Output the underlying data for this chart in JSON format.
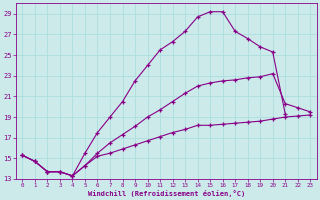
{
  "xlabel": "Windchill (Refroidissement éolien,°C)",
  "background_color": "#cceaea",
  "line_color": "#880088",
  "grid_color": "#aadddd",
  "xlim": [
    -0.5,
    23.5
  ],
  "ylim": [
    13,
    30
  ],
  "xticks": [
    0,
    1,
    2,
    3,
    4,
    5,
    6,
    7,
    8,
    9,
    10,
    11,
    12,
    13,
    14,
    15,
    16,
    17,
    18,
    19,
    20,
    21,
    22,
    23
  ],
  "yticks": [
    13,
    15,
    17,
    19,
    21,
    23,
    25,
    27,
    29
  ],
  "line1_x": [
    0,
    1,
    2,
    3,
    4,
    5,
    6,
    7,
    8,
    9,
    10,
    11,
    12,
    13,
    14,
    15,
    16,
    17,
    18,
    19,
    20,
    21,
    22,
    23
  ],
  "line1_y": [
    15.3,
    14.7,
    13.7,
    13.7,
    13.3,
    14.3,
    15.2,
    15.5,
    15.9,
    16.3,
    16.7,
    17.1,
    17.5,
    17.8,
    18.2,
    18.2,
    18.3,
    18.4,
    18.5,
    18.6,
    18.8,
    19.0,
    19.1,
    19.2
  ],
  "line2_x": [
    0,
    1,
    2,
    3,
    4,
    5,
    6,
    7,
    8,
    9,
    10,
    11,
    12,
    13,
    14,
    15,
    16,
    17,
    18,
    19,
    20,
    21,
    22,
    23
  ],
  "line2_y": [
    15.3,
    14.7,
    13.7,
    13.7,
    13.3,
    14.3,
    15.5,
    16.5,
    17.3,
    18.1,
    19.0,
    19.7,
    20.5,
    21.3,
    22.0,
    22.3,
    22.5,
    22.6,
    22.8,
    22.9,
    23.2,
    20.3,
    19.9,
    19.5
  ],
  "line3_x": [
    0,
    1,
    2,
    3,
    4,
    5,
    6,
    7,
    8,
    9,
    10,
    11,
    12,
    13,
    14,
    15,
    16,
    17,
    18,
    19,
    20,
    21
  ],
  "line3_y": [
    15.3,
    14.7,
    13.7,
    13.7,
    13.3,
    15.5,
    17.5,
    19.0,
    20.5,
    22.5,
    24.0,
    25.5,
    26.3,
    27.3,
    28.7,
    29.2,
    29.2,
    27.3,
    26.6,
    25.8,
    25.3,
    19.3
  ]
}
